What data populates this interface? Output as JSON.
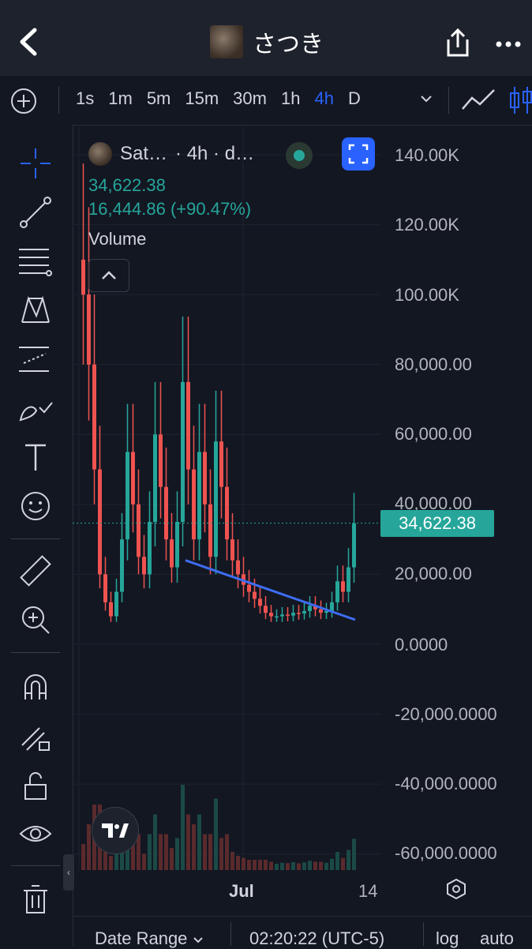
{
  "header": {
    "title": "さつき"
  },
  "timeframes": {
    "items": [
      "1s",
      "1m",
      "5m",
      "15m",
      "30m",
      "1h",
      "4h",
      "D"
    ],
    "active": "4h"
  },
  "legend": {
    "symbol": "Sat…",
    "interval": "· 4h · d…",
    "price": "34,622.38",
    "change": "16,444.86 (+90.47%)",
    "volume_label": "Volume"
  },
  "y_axis": {
    "labels": [
      "140.00K",
      "120.00K",
      "100.00K",
      "80,000.00",
      "60,000.00",
      "40,000.00",
      "20,000.00",
      "0.0000",
      "-20,000.0000",
      "-40,000.0000",
      "-60,000.0000"
    ]
  },
  "last_price_badge": "34,622.38",
  "x_axis": {
    "labels": [
      "Jul",
      "14"
    ]
  },
  "bottom_bar": {
    "date_range": "Date Range",
    "time": "02:20:22 (UTC-5)",
    "log": "log",
    "auto": "auto"
  },
  "colors": {
    "up": "#26a69a",
    "down": "#ef5350",
    "accent": "#2962ff",
    "trendline": "#3d6df2",
    "background": "#131722"
  },
  "chart_data": {
    "type": "candlestick",
    "ylim": [
      -60000,
      140000
    ],
    "grid": true,
    "last_price": 34622.38,
    "trendline": {
      "from": 24000,
      "to": 7000
    },
    "series": [
      {
        "values": [
          100000,
          80000,
          50000,
          20000,
          12000,
          8000,
          15000,
          30000,
          55000,
          40000,
          25000,
          20000,
          35000,
          60000,
          45000,
          30000,
          22000,
          35000,
          75000,
          50000,
          30000,
          55000,
          40000,
          25000,
          58000,
          45000,
          30000,
          24000,
          20000,
          17000,
          15000,
          13000,
          11000,
          9000,
          8000,
          8000,
          8500,
          8200,
          9000,
          8800,
          9500,
          11000,
          10000,
          9000,
          9500,
          12000,
          18000,
          15000,
          22000,
          34622.38
        ]
      }
    ]
  }
}
